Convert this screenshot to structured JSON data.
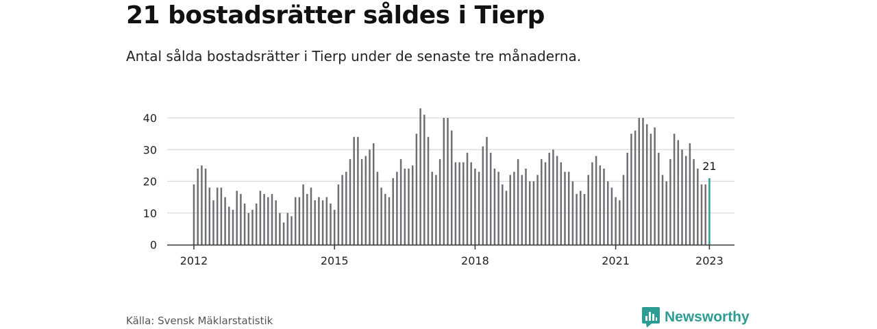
{
  "header": {
    "title": "21 bostadsrätter såldes i Tierp",
    "subtitle": "Antal sålda bostadsrätter i Tierp under de senaste tre månaderna."
  },
  "footer": {
    "source": "Källa: Svensk Mäklarstatistik",
    "brand": "Newsworthy"
  },
  "colors": {
    "bar": "#6e6e73",
    "highlight": "#2c9c94",
    "grid": "#d9d9d9",
    "axis": "#333333",
    "text": "#222222"
  },
  "chart_data": {
    "type": "bar",
    "title": "",
    "xlabel": "",
    "ylabel": "",
    "ylim": [
      0,
      40
    ],
    "yticks": [
      0,
      10,
      20,
      30,
      40
    ],
    "xticks": [
      "2012",
      "2015",
      "2018",
      "2021",
      "2023"
    ],
    "grid": true,
    "legend": "none",
    "start": "2012-01",
    "values": [
      19,
      24,
      25,
      24,
      18,
      14,
      18,
      18,
      15,
      12,
      11,
      17,
      16,
      13,
      10,
      11,
      13,
      17,
      16,
      15,
      16,
      14,
      10,
      7,
      10,
      9,
      15,
      15,
      19,
      16,
      18,
      14,
      15,
      14,
      15,
      13,
      11,
      19,
      22,
      23,
      27,
      34,
      34,
      27,
      28,
      30,
      32,
      23,
      18,
      16,
      15,
      21,
      23,
      27,
      24,
      24,
      25,
      35,
      43,
      41,
      34,
      23,
      22,
      27,
      40,
      40,
      36,
      26,
      26,
      26,
      29,
      26,
      24,
      23,
      31,
      34,
      29,
      24,
      23,
      19,
      17,
      22,
      23,
      27,
      22,
      24,
      20,
      20,
      22,
      27,
      26,
      29,
      30,
      28,
      26,
      23,
      23,
      20,
      16,
      17,
      16,
      22,
      26,
      28,
      25,
      24,
      20,
      18,
      15,
      14,
      22,
      29,
      35,
      36,
      40,
      40,
      38,
      35,
      37,
      29,
      22,
      20,
      27,
      35,
      33,
      30,
      28,
      32,
      27,
      24,
      19,
      19,
      21
    ],
    "highlight": {
      "value": 21,
      "label": "21"
    }
  }
}
